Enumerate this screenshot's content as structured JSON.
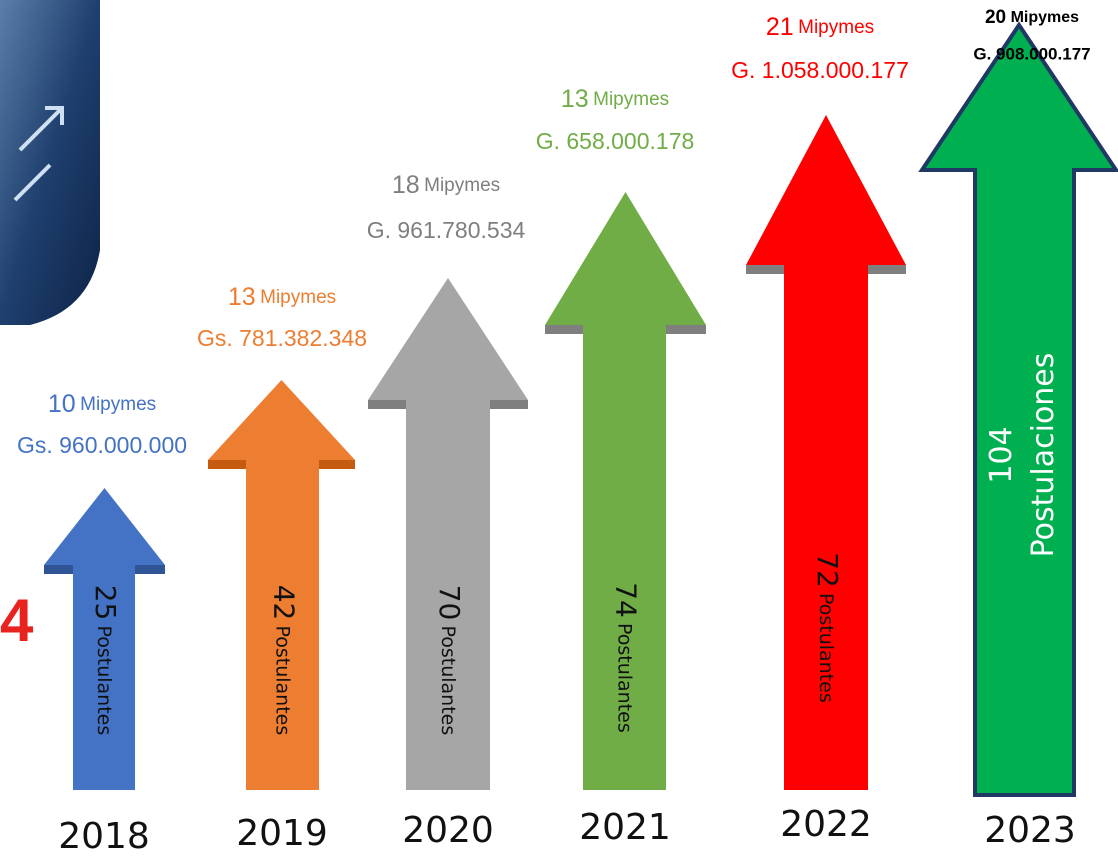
{
  "side_mark": "4",
  "items": [
    {
      "year": "2018",
      "mipymes_count": "10",
      "mipymes_label": "Mipymes",
      "amount": "Gs. 960.000.000",
      "applicants": "25",
      "applicants_label": "Postulantes"
    },
    {
      "year": "2019",
      "mipymes_count": "13",
      "mipymes_label": "Mipymes",
      "amount": "Gs. 781.382.348",
      "applicants": "42",
      "applicants_label": "Postulantes"
    },
    {
      "year": "2020",
      "mipymes_count": "18",
      "mipymes_label": "Mipymes",
      "amount": "G. 961.780.534",
      "applicants": "70",
      "applicants_label": "Postulantes"
    },
    {
      "year": "2021",
      "mipymes_count": "13",
      "mipymes_label": "Mipymes",
      "amount": "G. 658.000.178",
      "applicants": "74",
      "applicants_label": "Postulantes"
    },
    {
      "year": "2022",
      "mipymes_count": "21",
      "mipymes_label": "Mipymes",
      "amount": "G. 1.058.000.177",
      "applicants": "72",
      "applicants_label": "Postulantes"
    },
    {
      "year": "2023",
      "mipymes_count": "20",
      "mipymes_label": "Mipymes",
      "amount": "G. 908.000.177",
      "applicants": "104",
      "applicants_label": "Postulaciones"
    }
  ]
}
